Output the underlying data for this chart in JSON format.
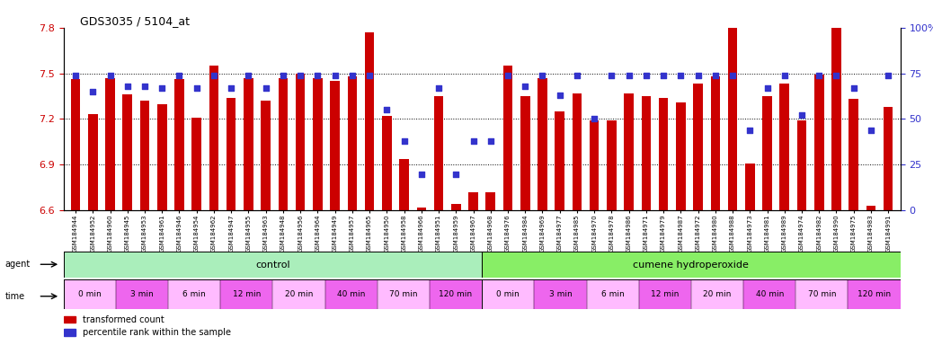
{
  "title": "GDS3035 / 5104_at",
  "ylim_left": [
    6.6,
    7.8
  ],
  "ylim_right": [
    0,
    100
  ],
  "yticks_left": [
    6.6,
    6.9,
    7.2,
    7.5,
    7.8
  ],
  "yticks_right": [
    0,
    25,
    50,
    75,
    100
  ],
  "bar_color": "#cc0000",
  "dot_color": "#3333cc",
  "sample_ids": [
    "GSM184944",
    "GSM184952",
    "GSM184960",
    "GSM184945",
    "GSM184953",
    "GSM184961",
    "GSM184946",
    "GSM184954",
    "GSM184962",
    "GSM184947",
    "GSM184955",
    "GSM184963",
    "GSM184948",
    "GSM184956",
    "GSM184964",
    "GSM184949",
    "GSM184957",
    "GSM184965",
    "GSM184950",
    "GSM184958",
    "GSM184966",
    "GSM184951",
    "GSM184959",
    "GSM184967",
    "GSM184968",
    "GSM184976",
    "GSM184984",
    "GSM184969",
    "GSM184977",
    "GSM184985",
    "GSM184970",
    "GSM184978",
    "GSM184986",
    "GSM184971",
    "GSM184979",
    "GSM184987",
    "GSM184972",
    "GSM184980",
    "GSM184988",
    "GSM184973",
    "GSM184981",
    "GSM184989",
    "GSM184974",
    "GSM184982",
    "GSM184990",
    "GSM184975",
    "GSM184983",
    "GSM184991"
  ],
  "bar_values": [
    7.46,
    7.23,
    7.47,
    7.36,
    7.32,
    7.3,
    7.46,
    7.21,
    7.55,
    7.34,
    7.47,
    7.32,
    7.47,
    7.5,
    7.47,
    7.45,
    7.48,
    7.77,
    7.22,
    6.94,
    6.62,
    7.35,
    6.64,
    6.72,
    6.72,
    7.55,
    7.35,
    7.47,
    7.25,
    7.37,
    7.19,
    7.19,
    7.37,
    7.35,
    7.34,
    7.31,
    7.43,
    7.48,
    7.8,
    6.91,
    7.35,
    7.43,
    7.19,
    7.49,
    7.92,
    7.33,
    6.63,
    7.28
  ],
  "dot_values": [
    74,
    65,
    74,
    68,
    68,
    67,
    74,
    67,
    74,
    67,
    74,
    67,
    74,
    74,
    74,
    74,
    74,
    74,
    55,
    38,
    20,
    67,
    20,
    38,
    38,
    74,
    68,
    74,
    63,
    74,
    50,
    74,
    74,
    74,
    74,
    74,
    74,
    74,
    74,
    44,
    67,
    74,
    52,
    74,
    74,
    67,
    44,
    74
  ],
  "agent_row_color_control": "#aaeebb",
  "agent_row_color_treatment": "#88ee66",
  "time_row_color_light": "#ffbbff",
  "time_row_color_dark": "#ee66ee",
  "legend_red_label": "transformed count",
  "legend_blue_label": "percentile rank within the sample"
}
